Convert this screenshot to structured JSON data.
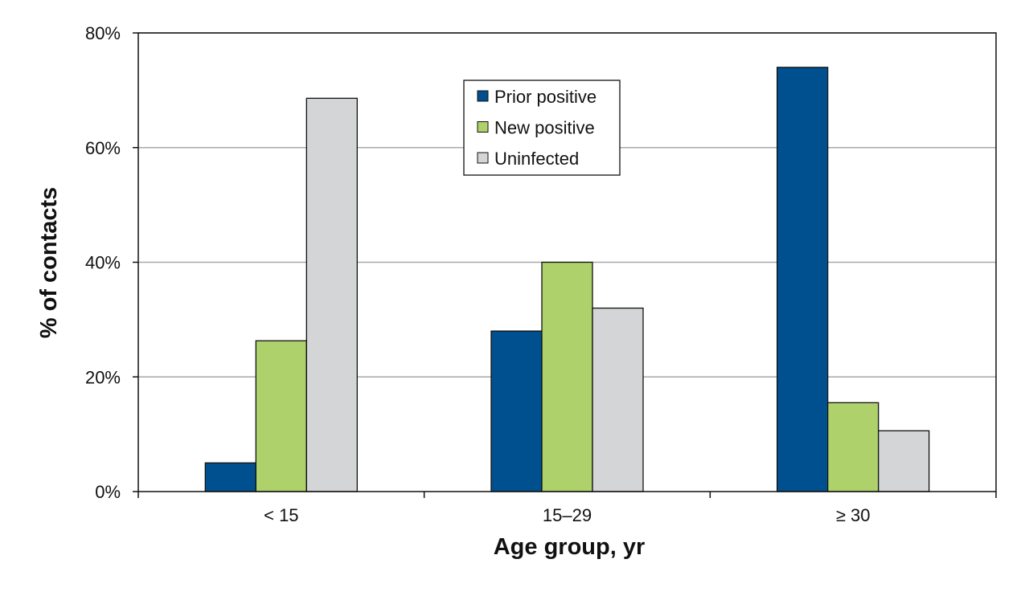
{
  "chart_data": {
    "type": "bar",
    "title": "",
    "xlabel": "Age group, yr",
    "ylabel": "% of contacts",
    "categories": [
      "< 15",
      "15–29",
      "≥ 30"
    ],
    "series": [
      {
        "name": "Prior positive",
        "color": "#00508f",
        "values": [
          5,
          28,
          74
        ]
      },
      {
        "name": "New positive",
        "color": "#aed16b",
        "values": [
          26.3,
          40,
          15.5
        ]
      },
      {
        "name": "Uninfected",
        "color": "#d3d5d6",
        "values": [
          68.6,
          32,
          10.6
        ]
      }
    ],
    "ylim": [
      0,
      80
    ],
    "yticks": [
      0,
      20,
      40,
      60,
      80
    ],
    "ytick_labels": [
      "0%",
      "20%",
      "40%",
      "60%",
      "80%"
    ],
    "grid": true,
    "legend_position": "top-center"
  }
}
